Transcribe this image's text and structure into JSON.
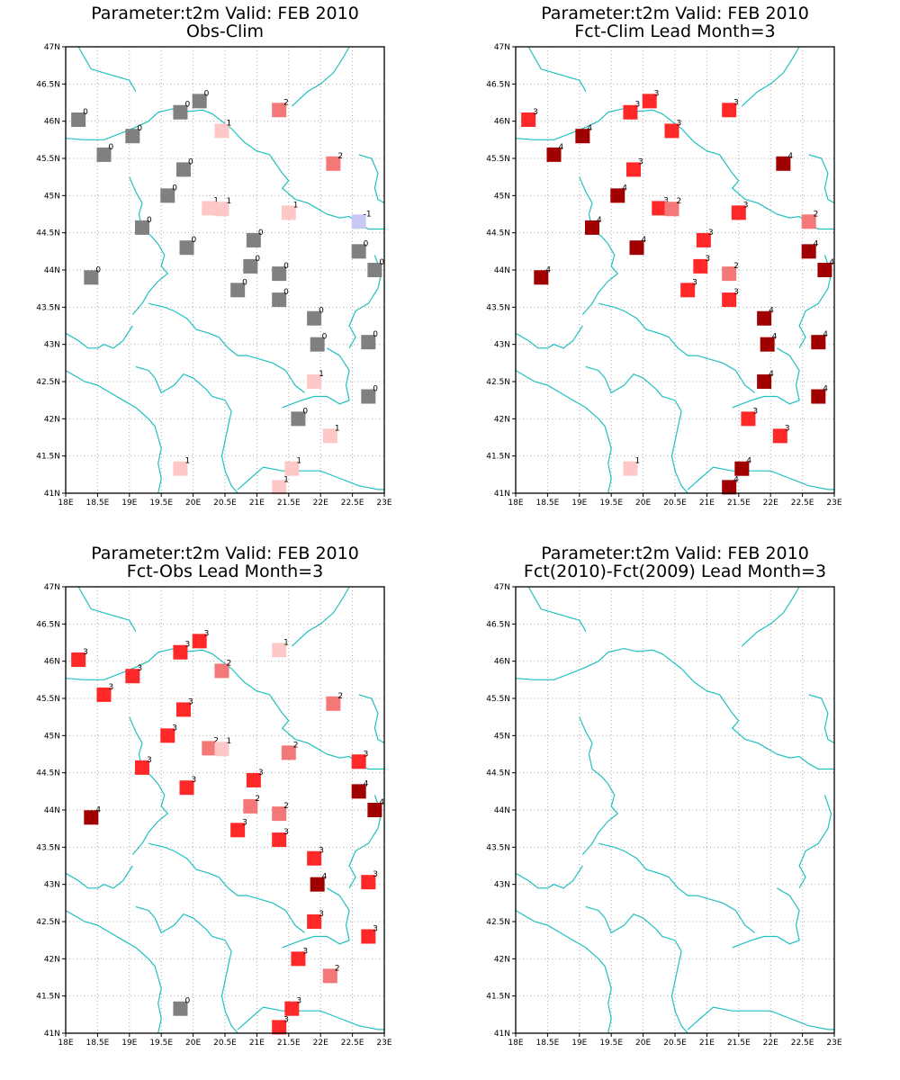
{
  "colors": {
    "-1": "#c8c8f5",
    "0": "#808080",
    "1": "#ffc8c8",
    "2": "#f57878",
    "3": "#ff2828",
    "4": "#a00000",
    "coast": "#20c0c0",
    "grid": "#aaaaaa"
  },
  "axes": {
    "lon_min": 18,
    "lon_max": 23,
    "lat_min": 41,
    "lat_max": 47,
    "x_ticks": [
      18,
      18.5,
      19,
      19.5,
      20,
      20.5,
      21,
      21.5,
      22,
      22.5,
      23
    ],
    "x_labels": [
      "18E",
      "18.5E",
      "19E",
      "19.5E",
      "20E",
      "20.5E",
      "21E",
      "21.5E",
      "22E",
      "22.5E",
      "23E"
    ],
    "y_ticks": [
      41,
      41.5,
      42,
      42.5,
      43,
      43.5,
      44,
      44.5,
      45,
      45.5,
      46,
      46.5,
      47
    ],
    "y_labels": [
      "41N",
      "41.5N",
      "42N",
      "42.5N",
      "43N",
      "43.5N",
      "44N",
      "44.5N",
      "45N",
      "45.5N",
      "46N",
      "46.5N",
      "47N"
    ]
  },
  "stations": [
    [
      18.2,
      46.02
    ],
    [
      18.6,
      45.55
    ],
    [
      19.05,
      45.8
    ],
    [
      19.8,
      46.12
    ],
    [
      20.1,
      46.27
    ],
    [
      19.85,
      45.35
    ],
    [
      19.6,
      45.0
    ],
    [
      20.25,
      44.83
    ],
    [
      20.45,
      44.82
    ],
    [
      19.2,
      44.57
    ],
    [
      19.9,
      44.3
    ],
    [
      18.4,
      43.9
    ],
    [
      20.95,
      44.4
    ],
    [
      20.9,
      44.05
    ],
    [
      20.7,
      43.73
    ],
    [
      21.35,
      43.95
    ],
    [
      21.35,
      43.6
    ],
    [
      21.5,
      44.77
    ],
    [
      21.35,
      46.15
    ],
    [
      22.2,
      45.43
    ],
    [
      22.6,
      44.65
    ],
    [
      22.6,
      44.25
    ],
    [
      22.85,
      44.0
    ],
    [
      21.9,
      43.35
    ],
    [
      21.95,
      43.0
    ],
    [
      22.75,
      43.03
    ],
    [
      21.9,
      42.5
    ],
    [
      22.75,
      42.3
    ],
    [
      21.65,
      42.0
    ],
    [
      22.15,
      41.77
    ],
    [
      19.8,
      41.33
    ],
    [
      21.55,
      41.33
    ],
    [
      21.35,
      41.08
    ],
    [
      20.45,
      45.87
    ]
  ],
  "panels": [
    {
      "title1": "Parameter:t2m Valid: FEB 2010",
      "title2": "Obs-Clim",
      "values": [
        0,
        0,
        0,
        0,
        0,
        0,
        0,
        1,
        1,
        0,
        0,
        0,
        0,
        0,
        0,
        0,
        0,
        1,
        2,
        2,
        -1,
        0,
        0,
        0,
        0,
        0,
        1,
        0,
        0,
        1,
        1,
        1,
        1,
        1
      ]
    },
    {
      "title1": "Parameter:t2m Valid: FEB 2010",
      "title2": "Fct-Clim Lead Month=3",
      "values": [
        3,
        4,
        4,
        3,
        3,
        3,
        4,
        3,
        2,
        4,
        4,
        4,
        3,
        3,
        3,
        2,
        3,
        3,
        3,
        4,
        2,
        4,
        4,
        4,
        4,
        4,
        4,
        4,
        3,
        3,
        1,
        4,
        4,
        3
      ]
    },
    {
      "title1": "Parameter:t2m Valid: FEB 2010",
      "title2": "Fct-Obs Lead Month=3",
      "values": [
        3,
        3,
        3,
        3,
        3,
        3,
        3,
        2,
        1,
        3,
        3,
        4,
        3,
        2,
        3,
        2,
        3,
        2,
        1,
        2,
        3,
        4,
        4,
        3,
        4,
        3,
        3,
        3,
        3,
        2,
        0,
        3,
        3,
        2
      ]
    },
    {
      "title1": "Parameter:t2m Valid: FEB 2010",
      "title2": "Fct(2010)-Fct(2009) Lead Month=3",
      "values": []
    }
  ]
}
